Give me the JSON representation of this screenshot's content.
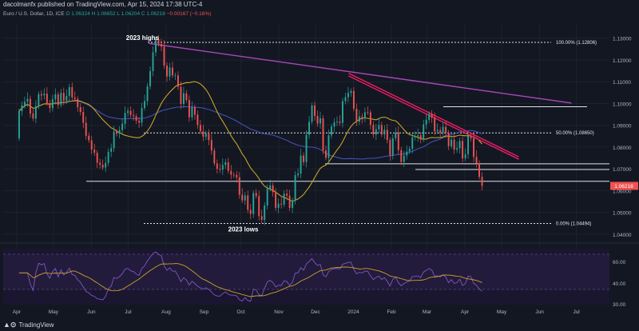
{
  "header": {
    "publisher": "dacolmanfx published on TradingView.com, Apr 15, 2024 17:38 UTC-4",
    "symbol": "Euro / U.S. Dollar, 1D, ICE",
    "ohlc": {
      "open": "O 1.06324",
      "high": "H 1.06652",
      "low": "L 1.06204",
      "close": "C 1.06218",
      "change": "−0.00167 (−0.16%)"
    }
  },
  "footer": {
    "brand": "TradingView"
  },
  "chart_data": {
    "type": "candlestick",
    "price_axis": {
      "ticks": [
        "1.13000",
        "1.12000",
        "1.11000",
        "1.10000",
        "1.09000",
        "1.08000",
        "1.07000",
        "1.06000",
        "1.05000",
        "1.04000"
      ],
      "ylim": [
        1.0385,
        1.1365
      ]
    },
    "time_axis": [
      "Apr",
      "May",
      "Jun",
      "Jul",
      "Aug",
      "Sep",
      "Oct",
      "Nov",
      "Dec",
      "2024",
      "Feb",
      "Mar",
      "Apr",
      "May",
      "Jun",
      "Jul"
    ],
    "last_price": {
      "label": "1.06218",
      "value": 1.06218
    },
    "annotations": [
      {
        "text": "2023 highs",
        "date": "2023-07-18",
        "price": 1.1276
      },
      {
        "text": "2023 lows",
        "date": "2023-10-03",
        "price": 1.0449
      }
    ],
    "fib_levels": [
      {
        "label": "100.00% (1.12806)",
        "value": 1.12806
      },
      {
        "label": "50.00% (1.08650)",
        "value": 1.0865
      },
      {
        "label": "0.00% (1.04494)",
        "value": 1.04494
      }
    ],
    "horizontal_levels": [
      1.0985,
      1.0723,
      1.0697,
      1.0643
    ],
    "trendlines": [
      {
        "color": "#ab47bc",
        "from": [
          "2023-07-18",
          1.1276
        ],
        "to": [
          "2024-06-27",
          1.1002
        ]
      },
      {
        "color": "#e91e63",
        "from": [
          "2023-12-28",
          1.1139
        ],
        "to": [
          "2024-05-15",
          1.0755
        ]
      },
      {
        "color": "#e91e63",
        "from": [
          "2023-12-28",
          1.1127
        ],
        "to": [
          "2024-05-15",
          1.0744
        ]
      }
    ],
    "moving_averages": [
      {
        "name": "MA fast",
        "color": "#c9a227"
      },
      {
        "name": "MA slow",
        "color": "#3f51b5"
      }
    ],
    "candles_close": [
      1.0965,
      1.0992,
      1.1008,
      1.1021,
      1.0954,
      1.0931,
      1.0988,
      1.1043,
      1.1037,
      1.1045,
      1.1002,
      1.0979,
      1.1019,
      1.1042,
      1.0993,
      1.1049,
      1.1013,
      1.1035,
      1.1075,
      1.1028,
      1.1021,
      1.0983,
      1.0961,
      1.0911,
      1.0852,
      1.0831,
      1.0788,
      1.0774,
      1.0728,
      1.0719,
      1.0706,
      1.0727,
      1.0778,
      1.0795,
      1.0871,
      1.0861,
      1.0878,
      1.0907,
      1.0957,
      1.0966,
      1.0947,
      1.0942,
      1.0921,
      1.0912,
      1.0979,
      1.1011,
      1.1079,
      1.1149,
      1.1235,
      1.1295,
      1.1273,
      1.1261,
      1.1174,
      1.1124,
      1.1165,
      1.1129,
      1.1129,
      1.1077,
      1.0998,
      1.1047,
      1.1016,
      1.0937,
      1.0983,
      1.0949,
      1.0901,
      1.0872,
      1.0848,
      1.0861,
      1.0832,
      1.0784,
      1.0725,
      1.07,
      1.0696,
      1.0718,
      1.073,
      1.0691,
      1.0673,
      1.0672,
      1.0661,
      1.0581,
      1.0555,
      1.0578,
      1.0512,
      1.0493,
      1.0589,
      1.0575,
      1.0483,
      1.0466,
      1.0532,
      1.0608,
      1.0624,
      1.0593,
      1.0521,
      1.054,
      1.0536,
      1.0586,
      1.0577,
      1.0521,
      1.0555,
      1.0671,
      1.0678,
      1.0761,
      1.0731,
      1.0856,
      1.0916,
      1.0991,
      1.0943,
      1.0908,
      1.0932,
      1.0785,
      1.0751,
      1.0854,
      1.0894,
      1.0914,
      1.0917,
      1.0911,
      1.1011,
      1.1029,
      1.1049,
      1.1057,
      1.0976,
      1.0917,
      1.094,
      1.0932,
      1.096,
      1.0959,
      1.0902,
      1.0857,
      1.0882,
      1.0901,
      1.0858,
      1.0879,
      1.0832,
      1.0761,
      1.084,
      1.0866,
      1.0786,
      1.0732,
      1.0761,
      1.0779,
      1.0792,
      1.0845,
      1.0849,
      1.0854,
      1.0835,
      1.0904,
      1.0925,
      1.0952,
      1.0935,
      1.0872,
      1.0878,
      1.0867,
      1.0893,
      1.0866,
      1.0804,
      1.0834,
      1.0788,
      1.0795,
      1.0828,
      1.0748,
      1.0767,
      1.085,
      1.0841,
      1.0755,
      1.0724,
      1.0663,
      1.0622
    ]
  },
  "rsi_panel": {
    "ticks": [
      "60.00",
      "40.00",
      "30.00"
    ],
    "levels": [
      70,
      30
    ],
    "line_colors": [
      "#7e57c2",
      "#c9a227"
    ]
  }
}
